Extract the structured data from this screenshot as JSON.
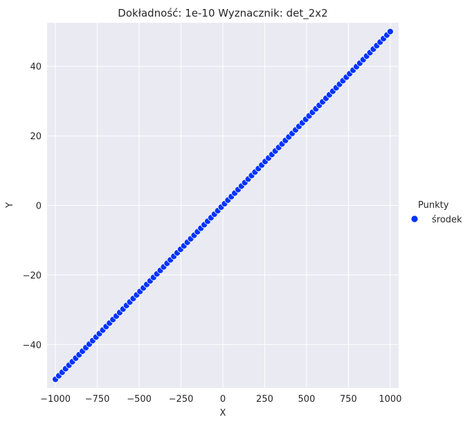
{
  "chart_data": {
    "type": "scatter",
    "title": "Dokładność: 1e-10  Wyznacznik: det_2x2",
    "xlabel": "X",
    "ylabel": "Y",
    "xlim": [
      -1050,
      1050
    ],
    "ylim": [
      -52.5,
      52.5
    ],
    "xticks": [
      -1000,
      -750,
      -500,
      -250,
      0,
      250,
      500,
      750,
      1000
    ],
    "xtick_labels": [
      "−1000",
      "−750",
      "−500",
      "−250",
      "0",
      "250",
      "500",
      "750",
      "1000"
    ],
    "yticks": [
      -40,
      -20,
      0,
      20,
      40
    ],
    "ytick_labels": [
      "−40",
      "−20",
      "0",
      "20",
      "40"
    ],
    "grid": true,
    "background": "#eaeaf2",
    "legend": {
      "title": "Punkty",
      "placement": "right",
      "entries": [
        "środek"
      ]
    },
    "series": [
      {
        "name": "środek",
        "color": "#0033ff",
        "relation": "y = 0.05 * x",
        "x_range": [
          -1000,
          1000
        ],
        "point_count": 100
      }
    ]
  }
}
